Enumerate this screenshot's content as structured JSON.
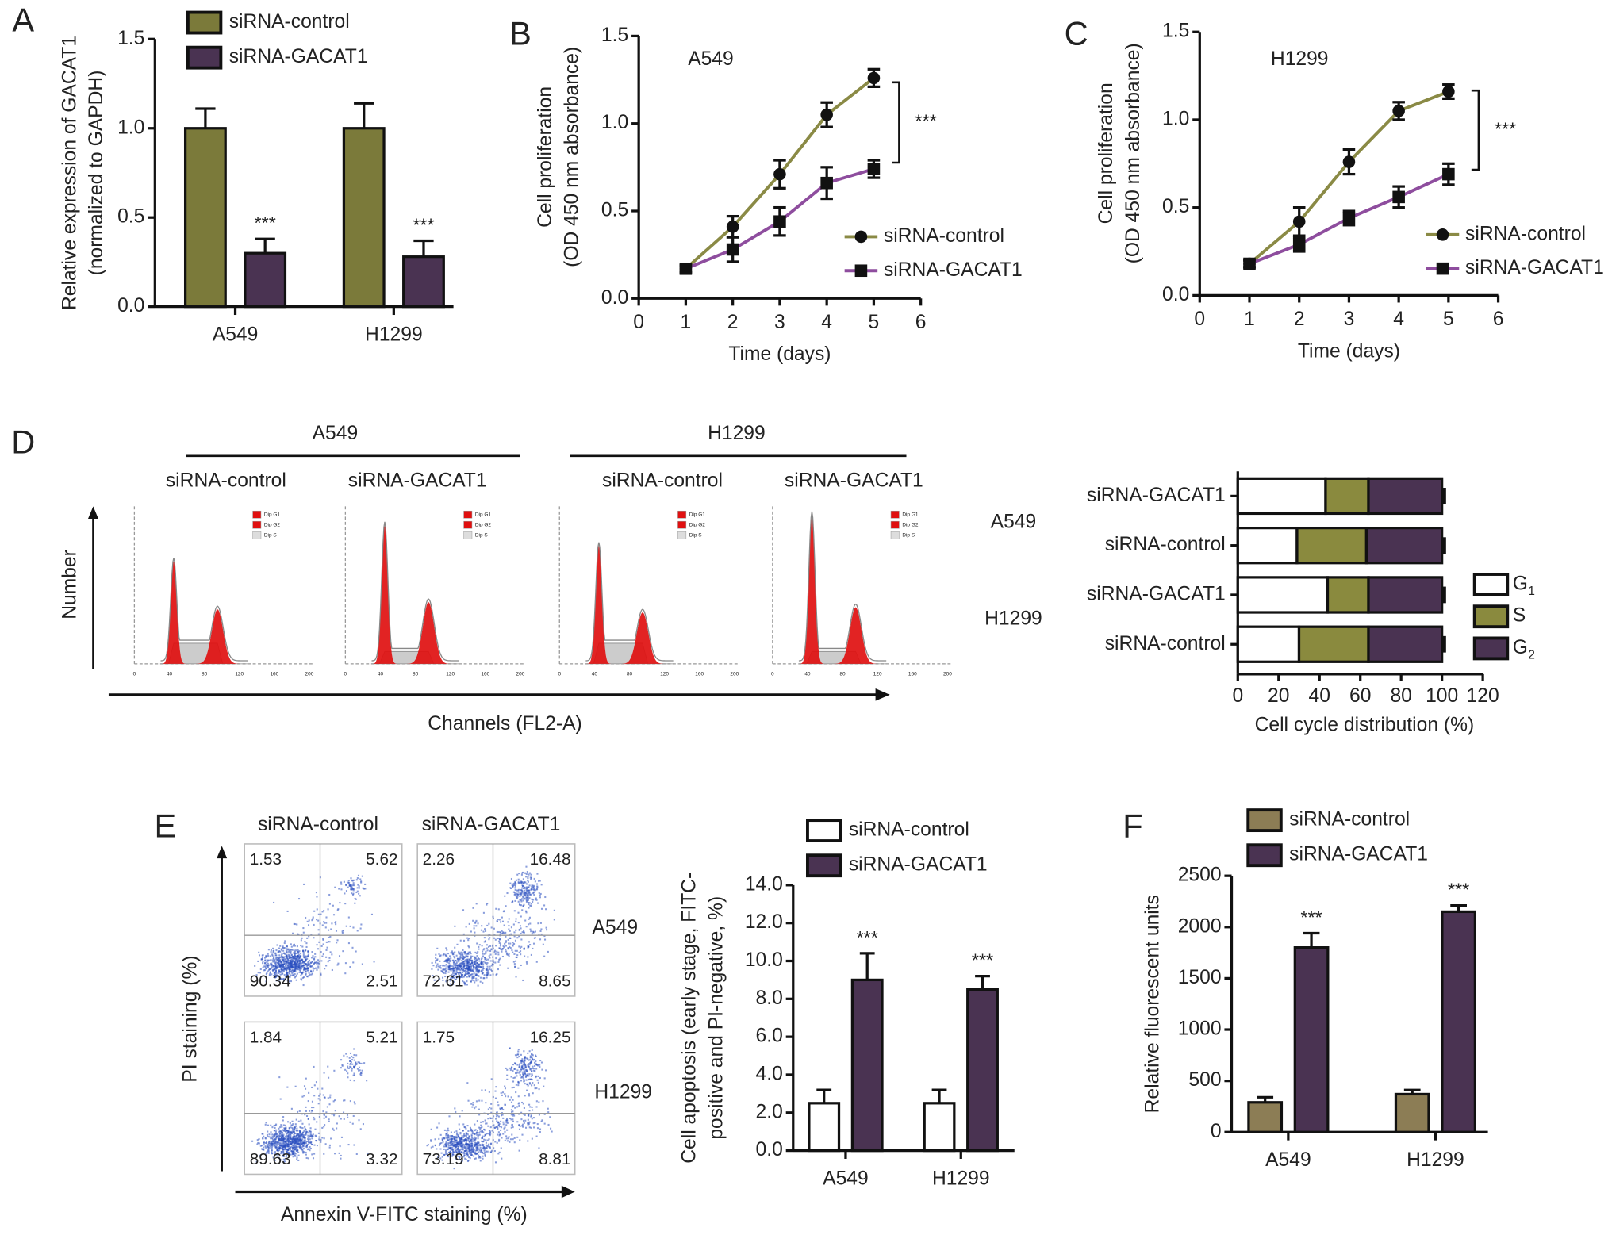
{
  "panel_labels": {
    "A": "A",
    "B": "B",
    "C": "C",
    "D": "D",
    "E": "E",
    "F": "F"
  },
  "colors": {
    "olive": "#7b7a3a",
    "purple": "#4a3352",
    "tan": "#8c7d55",
    "line_control": "#8a8a45",
    "line_gacat1": "#8e4d9e",
    "hist_red": "#e01010",
    "flow_blue": "#2a4fc0"
  },
  "chart_data": [
    {
      "id": "A",
      "type": "bar",
      "ylabel": [
        "Relative expression of GACAT1",
        "(normalized to GAPDH)"
      ],
      "categories": [
        "A549",
        "H1299"
      ],
      "ylim": [
        0,
        1.5
      ],
      "yticks": [
        "0.0",
        "0.5",
        "1.0",
        "1.5"
      ],
      "legend": [
        "siRNA-control",
        "siRNA-GACAT1"
      ],
      "legend_placement": "top",
      "series": [
        {
          "name": "siRNA-control",
          "values": [
            1.0,
            1.0
          ],
          "errors": [
            0.11,
            0.14
          ],
          "color": "#7b7a3a",
          "stars": [
            "",
            ""
          ]
        },
        {
          "name": "siRNA-GACAT1",
          "values": [
            0.3,
            0.28
          ],
          "errors": [
            0.08,
            0.09
          ],
          "color": "#4a3352",
          "stars": [
            "***",
            "***"
          ]
        }
      ]
    },
    {
      "id": "B",
      "type": "line",
      "annotation": "A549",
      "xlabel": "Time (days)",
      "ylabel": [
        "Cell proliferation",
        "(OD 450 nm absorbance)"
      ],
      "xlim": [
        0,
        6
      ],
      "xticks": [
        "0",
        "1",
        "2",
        "3",
        "4",
        "5",
        "6"
      ],
      "ylim": [
        0,
        1.5
      ],
      "yticks": [
        "0.0",
        "0.5",
        "1.0",
        "1.5"
      ],
      "x": [
        1,
        2,
        3,
        4,
        5
      ],
      "legend": [
        "siRNA-control",
        "siRNA-GACAT1"
      ],
      "legend_placement": "lower-right",
      "significance": "***",
      "series": [
        {
          "name": "siRNA-control",
          "marker": "circle",
          "values": [
            0.17,
            0.41,
            0.71,
            1.05,
            1.26
          ],
          "errors": [
            0.02,
            0.06,
            0.08,
            0.07,
            0.05
          ]
        },
        {
          "name": "siRNA-GACAT1",
          "marker": "square",
          "values": [
            0.17,
            0.28,
            0.44,
            0.66,
            0.74
          ],
          "errors": [
            0.02,
            0.07,
            0.08,
            0.09,
            0.05
          ]
        }
      ]
    },
    {
      "id": "C",
      "type": "line",
      "annotation": "H1299",
      "xlabel": "Time (days)",
      "ylabel": [
        "Cell proliferation",
        "(OD 450 nm absorbance)"
      ],
      "xlim": [
        0,
        6
      ],
      "xticks": [
        "0",
        "1",
        "2",
        "3",
        "4",
        "5",
        "6"
      ],
      "ylim": [
        0,
        1.5
      ],
      "yticks": [
        "0.0",
        "0.5",
        "1.0",
        "1.5"
      ],
      "x": [
        1,
        2,
        3,
        4,
        5
      ],
      "legend": [
        "siRNA-control",
        "siRNA-GACAT1"
      ],
      "legend_placement": "lower-right",
      "significance": "***",
      "series": [
        {
          "name": "siRNA-control",
          "marker": "circle",
          "values": [
            0.18,
            0.42,
            0.76,
            1.05,
            1.16
          ],
          "errors": [
            0.02,
            0.08,
            0.07,
            0.05,
            0.04
          ]
        },
        {
          "name": "siRNA-GACAT1",
          "marker": "square",
          "values": [
            0.18,
            0.29,
            0.44,
            0.56,
            0.69
          ],
          "errors": [
            0.02,
            0.04,
            0.04,
            0.06,
            0.06
          ]
        }
      ]
    },
    {
      "id": "D-histograms",
      "type": "histogram",
      "groups": [
        "A549",
        "H1299"
      ],
      "panels": [
        "siRNA-control",
        "siRNA-GACAT1",
        "siRNA-control",
        "siRNA-GACAT1"
      ],
      "xlabel": "Channels (FL2-A)",
      "ylabel": "Number",
      "xticks": [
        "0",
        "40",
        "80",
        "120",
        "160",
        "200"
      ],
      "legend": [
        "Dip G1",
        "Dip G2",
        "Dip S"
      ]
    },
    {
      "id": "D-bars",
      "type": "bar",
      "orientation": "horizontal",
      "stacked": true,
      "xlabel": "Cell cycle distribution (%)",
      "xlim": [
        0,
        120
      ],
      "xticks": [
        "0",
        "20",
        "40",
        "60",
        "80",
        "100",
        "120"
      ],
      "row_groups": [
        "A549",
        "H1299"
      ],
      "categories": [
        "siRNA-GACAT1",
        "siRNA-control",
        "siRNA-GACAT1",
        "siRNA-control"
      ],
      "legend": [
        "G",
        "S",
        "G"
      ],
      "legend_subscripts": [
        "1",
        "",
        "2"
      ],
      "legend_placement": "right",
      "series": [
        {
          "name": "G1",
          "color": "#ffffff",
          "values": [
            43,
            29,
            44,
            30
          ]
        },
        {
          "name": "S",
          "color": "#8a8a3e",
          "values": [
            21,
            34,
            20,
            34
          ]
        },
        {
          "name": "G2",
          "color": "#4a3352",
          "values": [
            36,
            37,
            36,
            36
          ]
        }
      ]
    },
    {
      "id": "E-flow",
      "type": "scatter",
      "columns": [
        "siRNA-control",
        "siRNA-GACAT1"
      ],
      "rows": [
        "A549",
        "H1299"
      ],
      "xlabel": "Annexin V-FITC staining (%)",
      "ylabel": "PI staining (%)",
      "quadrants": [
        [
          {
            "ul": "1.53",
            "ur": "5.62",
            "ll": "90.34",
            "lr": "2.51"
          },
          {
            "ul": "2.26",
            "ur": "16.48",
            "ll": "72.61",
            "lr": "8.65"
          }
        ],
        [
          {
            "ul": "1.84",
            "ur": "5.21",
            "ll": "89.63",
            "lr": "3.32"
          },
          {
            "ul": "1.75",
            "ur": "16.25",
            "ll": "73.19",
            "lr": "8.81"
          }
        ]
      ]
    },
    {
      "id": "E-bars",
      "type": "bar",
      "ylabel": [
        "Cell apoptosis (early stage, FITC-",
        "positive and PI-negative, %)"
      ],
      "categories": [
        "A549",
        "H1299"
      ],
      "ylim": [
        0,
        14
      ],
      "yticks": [
        "0.0",
        "2.0",
        "4.0",
        "6.0",
        "8.0",
        "10.0",
        "12.0",
        "14.0"
      ],
      "legend": [
        "siRNA-control",
        "siRNA-GACAT1"
      ],
      "legend_placement": "top",
      "series": [
        {
          "name": "siRNA-control",
          "values": [
            2.5,
            2.5
          ],
          "errors": [
            0.7,
            0.7
          ],
          "color": "#ffffff",
          "stars": [
            "",
            ""
          ]
        },
        {
          "name": "siRNA-GACAT1",
          "values": [
            9.0,
            8.5
          ],
          "errors": [
            1.4,
            0.7
          ],
          "color": "#4a3352",
          "stars": [
            "***",
            "***"
          ]
        }
      ]
    },
    {
      "id": "F",
      "type": "bar",
      "ylabel": [
        "Relative fluorescent units"
      ],
      "categories": [
        "A549",
        "H1299"
      ],
      "ylim": [
        0,
        2500
      ],
      "yticks": [
        "0",
        "500",
        "1000",
        "1500",
        "2000",
        "2500"
      ],
      "legend": [
        "siRNA-control",
        "siRNA-GACAT1"
      ],
      "legend_placement": "top",
      "series": [
        {
          "name": "siRNA-control",
          "values": [
            290,
            370
          ],
          "errors": [
            50,
            40
          ],
          "color": "#8c7d55",
          "stars": [
            "",
            ""
          ]
        },
        {
          "name": "siRNA-GACAT1",
          "values": [
            1800,
            2150
          ],
          "errors": [
            140,
            60
          ],
          "color": "#4a3352",
          "stars": [
            "***",
            "***"
          ]
        }
      ]
    }
  ]
}
